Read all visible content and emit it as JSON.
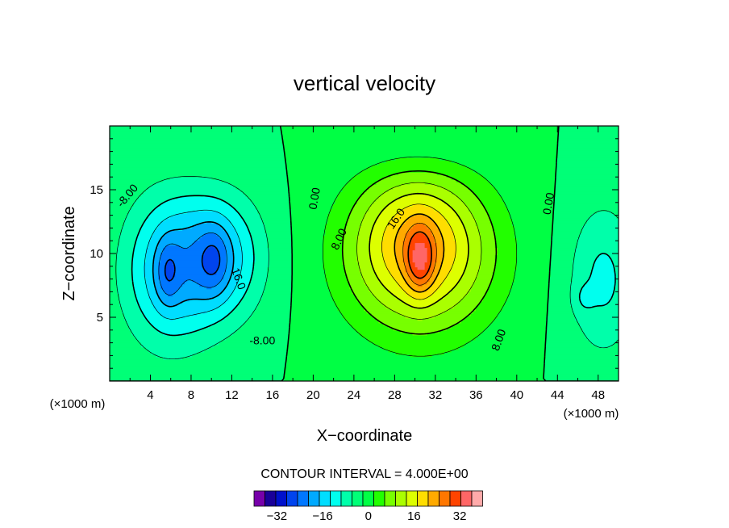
{
  "chart_data": {
    "type": "heatmap",
    "title": "vertical velocity",
    "xlabel": "X−coordinate",
    "ylabel": "Z−coordinate",
    "x_unit_left": "(×1000 m)",
    "x_unit_right": "(×1000 m)",
    "xlim": [
      0,
      50
    ],
    "ylim": [
      0,
      20
    ],
    "x_ticks": [
      4,
      8,
      12,
      16,
      20,
      24,
      28,
      32,
      36,
      40,
      44,
      48
    ],
    "x_tick_labels": [
      "4",
      "8",
      "12",
      "16",
      "20",
      "24",
      "28",
      "32",
      "36",
      "40",
      "44",
      "48"
    ],
    "y_ticks": [
      5,
      10,
      15
    ],
    "y_tick_labels": [
      "5",
      "10",
      "15"
    ],
    "contour_interval_text": "CONTOUR INTERVAL = 4.000E+00",
    "contour_interval": 4,
    "contour_labels": [
      {
        "text": "-8.00",
        "x": 1.8,
        "y": 14.5,
        "angle": -50
      },
      {
        "text": "0.00",
        "x": 20.2,
        "y": 14.3,
        "angle": -80
      },
      {
        "text": "8.00",
        "x": 22.6,
        "y": 11.1,
        "angle": -65
      },
      {
        "text": "16.0",
        "x": 28.2,
        "y": 12.7,
        "angle": -55
      },
      {
        "text": "0.00",
        "x": 43.2,
        "y": 13.9,
        "angle": -80
      },
      {
        "text": "16.0",
        "x": 12.6,
        "y": 8.0,
        "angle": 70
      },
      {
        "text": "-8.00",
        "x": 15.0,
        "y": 3.1,
        "angle": 0
      },
      {
        "text": "8.00",
        "x": 38.3,
        "y": 3.2,
        "angle": -70
      }
    ],
    "colorbar": {
      "levels": [
        -40,
        -36,
        -32,
        -28,
        -24,
        -20,
        -16,
        -12,
        -8,
        -4,
        0,
        4,
        8,
        12,
        16,
        20,
        24,
        28,
        32,
        36,
        40
      ],
      "colors": [
        "#7700aa",
        "#1a0099",
        "#0011cc",
        "#0044ee",
        "#0077ff",
        "#00aaff",
        "#00ddff",
        "#00ffee",
        "#00ffaa",
        "#00ff77",
        "#00ff44",
        "#22ff00",
        "#77ff00",
        "#aaff00",
        "#ddff00",
        "#ffdd00",
        "#ffaa00",
        "#ff7700",
        "#ff4400",
        "#ff6666",
        "#ffaaaa"
      ],
      "tick_values": [
        -32,
        -16,
        0,
        16,
        32
      ],
      "tick_labels": [
        "−32",
        "−16",
        "0",
        "16",
        "32"
      ]
    },
    "features": [
      {
        "name": "updraft core",
        "x": 30.5,
        "z": 9.5,
        "peak": 34
      },
      {
        "name": "downdraft left",
        "x": 5.7,
        "z": 8.5,
        "peak": -22
      },
      {
        "name": "downdraft center",
        "x": 10.5,
        "z": 9.5,
        "peak": -22
      },
      {
        "name": "downdraft right edge",
        "x": 48.5,
        "z": 8.0,
        "peak": -8
      }
    ]
  }
}
